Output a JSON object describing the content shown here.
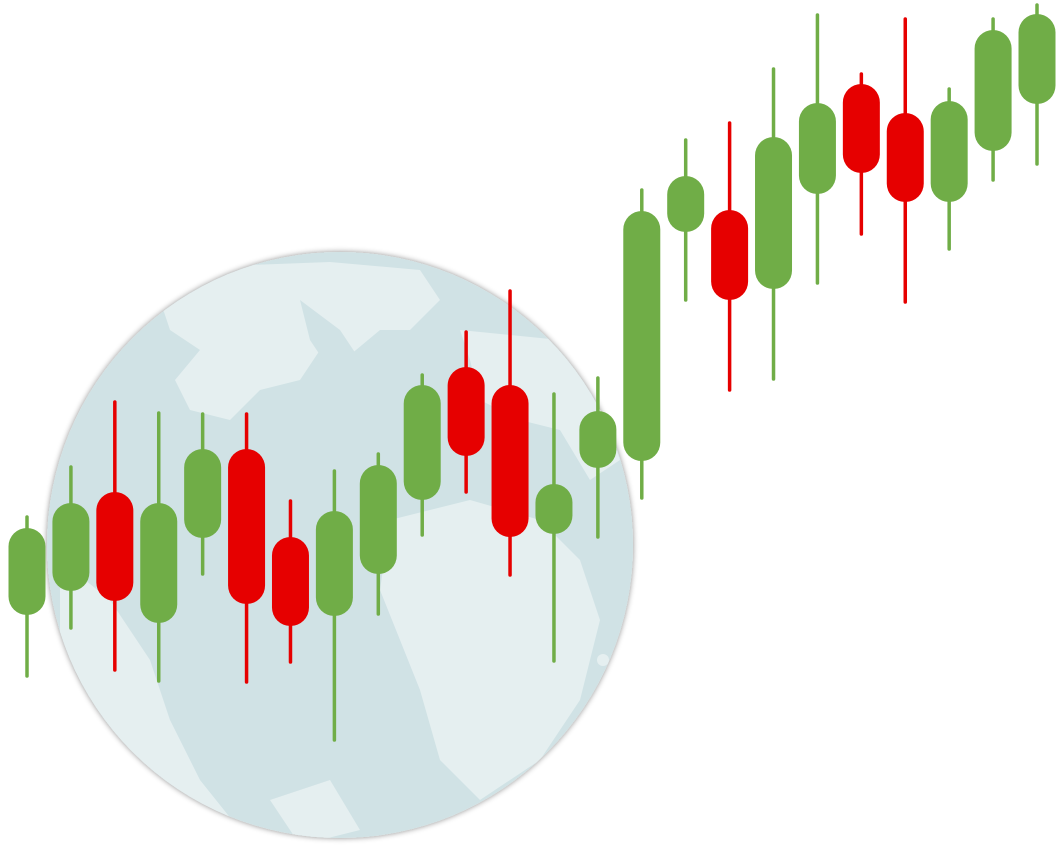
{
  "chart_data": {
    "type": "candlestick",
    "open": [
      234,
      258,
      357,
      226,
      311,
      400,
      312,
      233,
      275,
      349,
      482,
      464,
      315,
      381,
      388,
      617,
      639,
      560,
      655,
      765,
      736,
      647,
      698,
      745
    ],
    "high": [
      332,
      382,
      447,
      436,
      435,
      435,
      348,
      378,
      395,
      474,
      517,
      558,
      455,
      471,
      659,
      709,
      726,
      780,
      834,
      775,
      830,
      760,
      830,
      844
    ],
    "low": [
      173,
      221,
      179,
      168,
      275,
      167,
      187,
      109,
      235,
      314,
      357,
      274,
      188,
      312,
      351,
      549,
      459,
      470,
      566,
      615,
      547,
      600,
      669,
      685
    ],
    "close": [
      321,
      346,
      248,
      346,
      400,
      245,
      223,
      338,
      384,
      464,
      393,
      312,
      365,
      438,
      638,
      673,
      549,
      712,
      746,
      676,
      647,
      748,
      819,
      835
    ],
    "up_color": "#70ad47",
    "down_color": "#e60000",
    "ylim": [
      0,
      849
    ]
  }
}
